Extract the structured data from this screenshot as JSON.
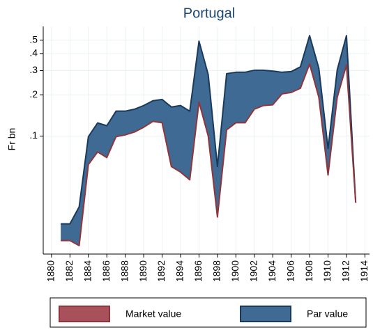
{
  "chart_data": {
    "type": "range-area",
    "title": "Portugal",
    "y_label": "Fr bn",
    "log_y": true,
    "grid": true,
    "x": [
      1881,
      1882,
      1883,
      1884,
      1885,
      1886,
      1887,
      1888,
      1889,
      1890,
      1891,
      1892,
      1893,
      1894,
      1895,
      1896,
      1897,
      1898,
      1899,
      1900,
      1901,
      1902,
      1903,
      1904,
      1905,
      1906,
      1907,
      1908,
      1909,
      1910,
      1911,
      1912,
      1913
    ],
    "series": [
      {
        "name": "Market value",
        "color": "#90353b",
        "fill": "#a8515a",
        "values": [
          0.0173,
          0.0173,
          0.0159,
          0.062,
          0.0766,
          0.0697,
          0.099,
          0.102,
          0.107,
          0.116,
          0.128,
          0.125,
          0.06,
          0.0546,
          0.048,
          0.177,
          0.1,
          0.0257,
          0.111,
          0.125,
          0.125,
          0.157,
          0.167,
          0.169,
          0.203,
          0.208,
          0.223,
          0.335,
          0.192,
          0.052,
          0.192,
          0.33,
          0.0327
        ]
      },
      {
        "name": "Par value",
        "color": "#1a3a5c",
        "fill": "#3e6a93",
        "values": [
          0.0229,
          0.0229,
          0.0305,
          0.099,
          0.1247,
          0.119,
          0.152,
          0.152,
          0.157,
          0.167,
          0.181,
          0.185,
          0.163,
          0.167,
          0.152,
          0.492,
          0.281,
          0.06,
          0.285,
          0.292,
          0.292,
          0.302,
          0.302,
          0.298,
          0.292,
          0.295,
          0.32,
          0.54,
          0.313,
          0.081,
          0.305,
          0.54,
          0.0327
        ]
      }
    ],
    "xlim": [
      1879.1,
      1914.5
    ],
    "xticks": [
      1880,
      1882,
      1884,
      1886,
      1888,
      1890,
      1892,
      1894,
      1896,
      1898,
      1900,
      1902,
      1904,
      1906,
      1908,
      1910,
      1912,
      1914
    ],
    "ylim": [
      0.0138,
      0.63
    ],
    "yticks": [
      {
        "value": 0.1,
        "label": ".1"
      },
      {
        "value": 0.2,
        "label": ".2"
      },
      {
        "value": 0.3,
        "label": ".3"
      },
      {
        "value": 0.4,
        "label": ".4"
      },
      {
        "value": 0.5,
        "label": ".5"
      }
    ]
  }
}
